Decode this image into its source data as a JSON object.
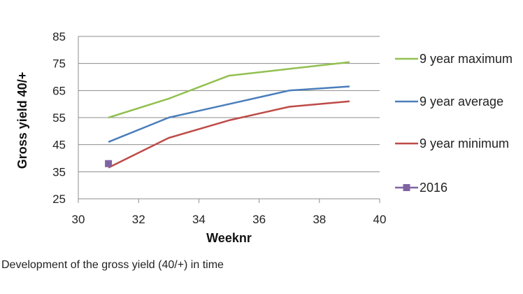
{
  "caption": "Development of the gross yield (40/+) in time",
  "chart_data": {
    "type": "line",
    "xlabel": "Weeknr",
    "ylabel": "Gross yield 40/+",
    "xlim": [
      30,
      40
    ],
    "ylim": [
      25,
      85
    ],
    "xticks": [
      30,
      32,
      34,
      36,
      38,
      40
    ],
    "yticks": [
      25,
      35,
      45,
      55,
      65,
      75,
      85
    ],
    "grid": "horizontal",
    "legend_position": "right",
    "series": [
      {
        "name": "9 year maximum",
        "color": "#92c050",
        "marker": "none",
        "x": [
          31,
          33,
          35,
          37,
          39
        ],
        "y": [
          55,
          62,
          70.5,
          73,
          75.5
        ]
      },
      {
        "name": "9 year average",
        "color": "#4a7ebb",
        "marker": "none",
        "x": [
          31,
          33,
          35,
          37,
          39
        ],
        "y": [
          46,
          55,
          60,
          65,
          66.5
        ]
      },
      {
        "name": "9 year minimum",
        "color": "#be4b48",
        "marker": "none",
        "x": [
          31,
          33,
          35,
          37,
          39
        ],
        "y": [
          36.5,
          47.5,
          54,
          59,
          61
        ]
      },
      {
        "name": "2016",
        "color": "#8064a2",
        "marker": "square",
        "x": [
          31
        ],
        "y": [
          38
        ]
      }
    ]
  }
}
